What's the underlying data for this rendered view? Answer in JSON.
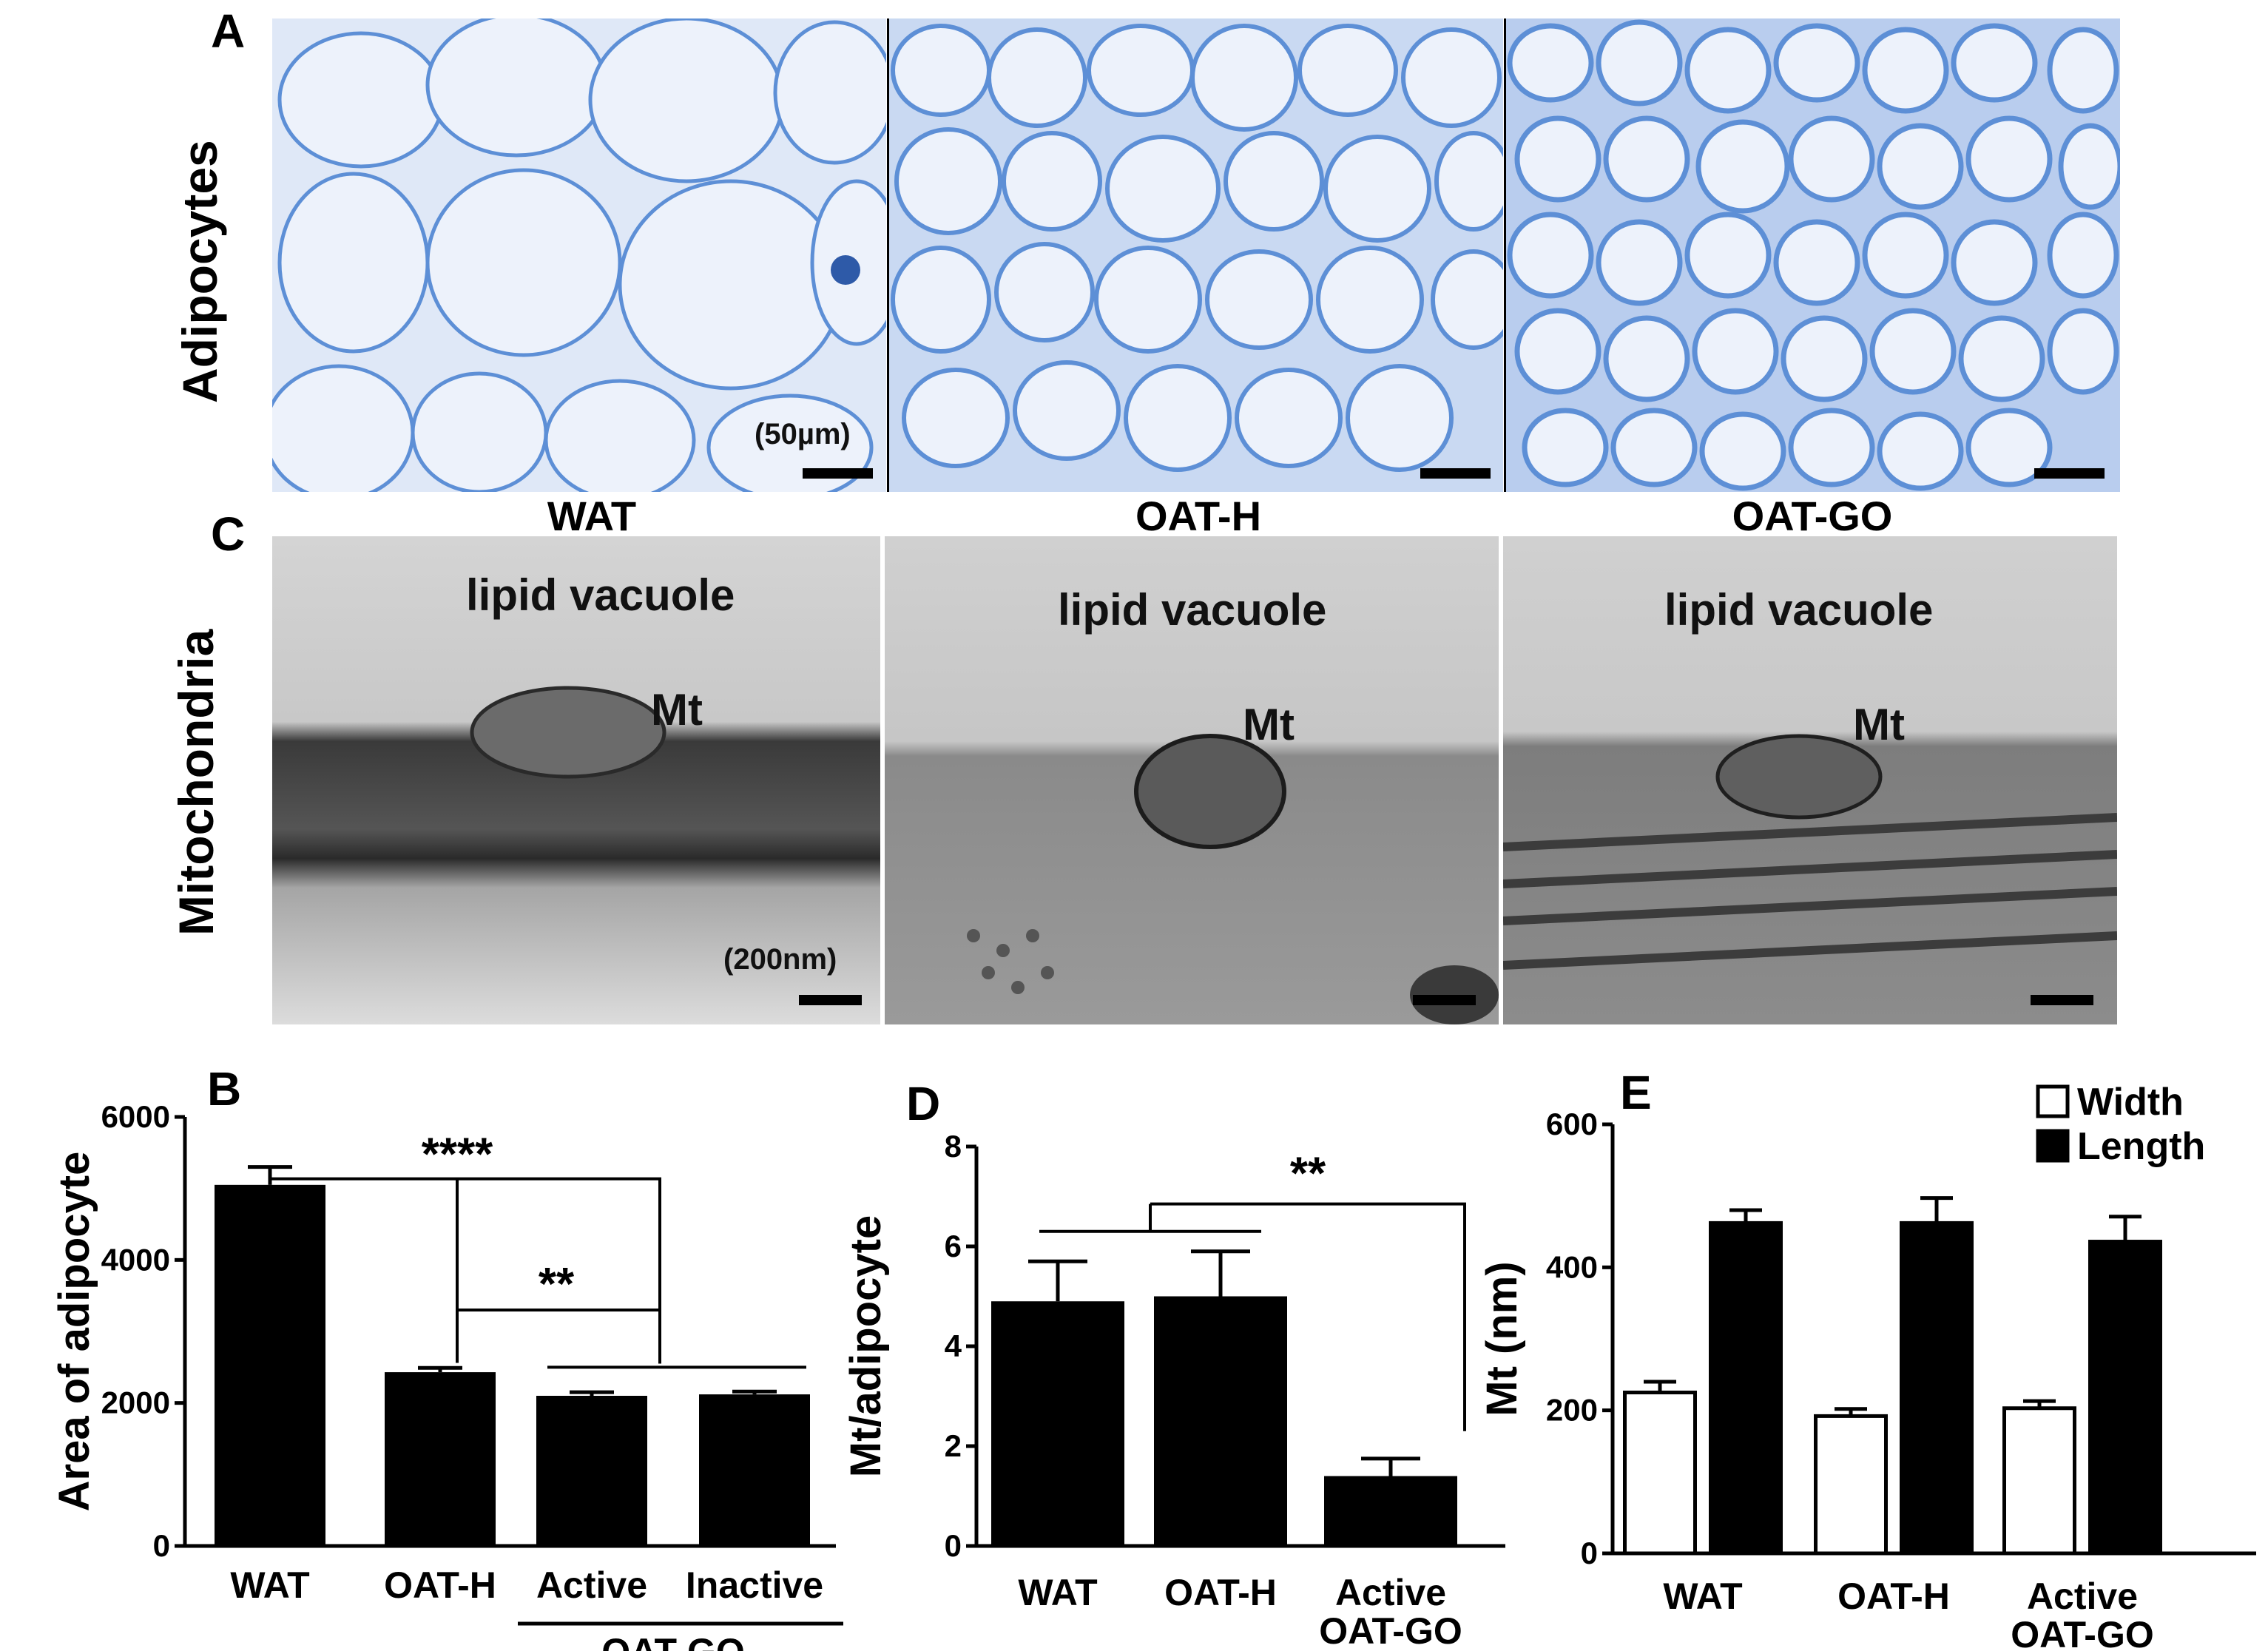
{
  "panels": {
    "A": "A",
    "B": "B",
    "C": "C",
    "D": "D",
    "E": "E"
  },
  "rows": {
    "adipocytes": "Adipocytes",
    "mitochondria": "Mitochondria"
  },
  "conditions": [
    "WAT",
    "OAT-H",
    "OAT-GO"
  ],
  "micrographs": {
    "scale_histo": "(50µm)",
    "scale_tem": "(200nm)",
    "lipid_label": "lipid vacuole",
    "mt_label": "Mt"
  },
  "colors": {
    "histo_bg": "#dfe8f7",
    "histo_stroma": "#5d8fd6",
    "tem_bg": "#cfcfcf",
    "bar_fill": "#000000"
  },
  "chart_data": [
    {
      "id": "B",
      "type": "bar",
      "ylabel": "Area of adipocyte",
      "ylim": [
        0,
        6000
      ],
      "yticks": [
        0,
        2000,
        4000,
        6000
      ],
      "categories": [
        "WAT",
        "OAT-H",
        "Active",
        "Inactive"
      ],
      "group_label": "OAT-GO",
      "values": [
        5050,
        2430,
        2100,
        2120
      ],
      "errors": [
        250,
        60,
        50,
        40
      ],
      "significance": [
        "****",
        "**"
      ]
    },
    {
      "id": "D",
      "type": "bar",
      "ylabel": "Mt/adipocyte",
      "ylim": [
        0,
        8
      ],
      "yticks": [
        0,
        2,
        4,
        6,
        8
      ],
      "categories": [
        "WAT",
        "OAT-H",
        "Active\nOAT-GO"
      ],
      "values": [
        4.9,
        5.0,
        1.4
      ],
      "errors": [
        0.8,
        0.9,
        0.35
      ],
      "significance": [
        "**"
      ]
    },
    {
      "id": "E",
      "type": "bar",
      "ylabel": "Mt (nm)",
      "ylim": [
        0,
        600
      ],
      "yticks": [
        0,
        200,
        400,
        600
      ],
      "categories": [
        "WAT",
        "OAT-H",
        "Active\nOAT-GO"
      ],
      "legend_position": "top-right",
      "series": [
        {
          "name": "Width",
          "values": [
            225,
            192,
            203
          ],
          "errors": [
            15,
            10,
            10
          ],
          "fill": "#ffffff"
        },
        {
          "name": "Length",
          "values": [
            462,
            462,
            436
          ],
          "errors": [
            18,
            35,
            35
          ],
          "fill": "#000000"
        }
      ]
    }
  ]
}
